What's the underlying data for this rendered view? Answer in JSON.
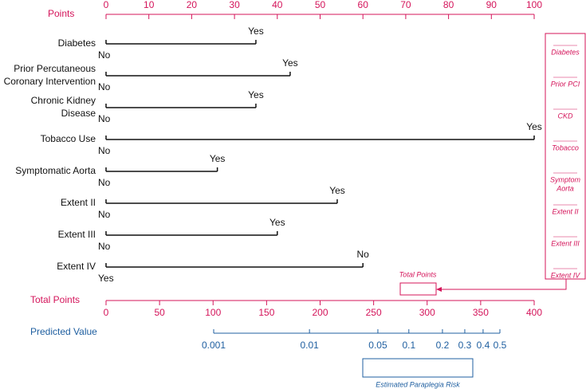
{
  "chart_data": {
    "type": "nomogram",
    "points_axis": {
      "label": "Points",
      "xlim": [
        0,
        100
      ],
      "xticks": [
        0,
        10,
        20,
        30,
        40,
        50,
        60,
        70,
        80,
        90,
        100
      ]
    },
    "variables": [
      {
        "label": [
          "Diabetes"
        ],
        "levels": [
          {
            "label": "No",
            "points": 0
          },
          {
            "label": "Yes",
            "points": 35
          }
        ]
      },
      {
        "label": [
          "Prior Percutaneous",
          "Coronary Intervention"
        ],
        "levels": [
          {
            "label": "No",
            "points": 0
          },
          {
            "label": "Yes",
            "points": 43
          }
        ]
      },
      {
        "label": [
          "Chronic Kidney",
          "Disease"
        ],
        "levels": [
          {
            "label": "No",
            "points": 0
          },
          {
            "label": "Yes",
            "points": 35
          }
        ]
      },
      {
        "label": [
          "Tobacco Use"
        ],
        "levels": [
          {
            "label": "No",
            "points": 0
          },
          {
            "label": "Yes",
            "points": 100
          }
        ]
      },
      {
        "label": [
          "Symptomatic Aorta"
        ],
        "levels": [
          {
            "label": "No",
            "points": 0
          },
          {
            "label": "Yes",
            "points": 26
          }
        ]
      },
      {
        "label": [
          "Extent II"
        ],
        "levels": [
          {
            "label": "No",
            "points": 0
          },
          {
            "label": "Yes",
            "points": 54
          }
        ]
      },
      {
        "label": [
          "Extent III"
        ],
        "levels": [
          {
            "label": "No",
            "points": 0
          },
          {
            "label": "Yes",
            "points": 40
          }
        ]
      },
      {
        "label": [
          "Extent IV"
        ],
        "levels": [
          {
            "label": "Yes",
            "points": 0
          },
          {
            "label": "No",
            "points": 60
          }
        ]
      }
    ],
    "total_axis": {
      "label": "Total Points",
      "xlim": [
        0,
        400
      ],
      "xticks": [
        0,
        50,
        100,
        150,
        200,
        250,
        300,
        350,
        400
      ]
    },
    "predicted_axis": {
      "label": "Predicted Value",
      "scale": "logit",
      "xlim": [
        0.001,
        0.5
      ],
      "xticks": [
        0.001,
        0.01,
        0.05,
        0.1,
        0.2,
        0.3,
        0.4,
        0.5
      ]
    },
    "side_labels": [
      [
        "Diabetes"
      ],
      [
        "Prior PCI"
      ],
      [
        "CKD"
      ],
      [
        "Tobacco"
      ],
      [
        "Symptom",
        "Aorta"
      ],
      [
        "Extent II"
      ],
      [
        "Extent III"
      ],
      [
        "Extent IV"
      ]
    ],
    "total_box_label": "Total Points",
    "risk_box_label": "Estimated Paraplegia Risk"
  }
}
